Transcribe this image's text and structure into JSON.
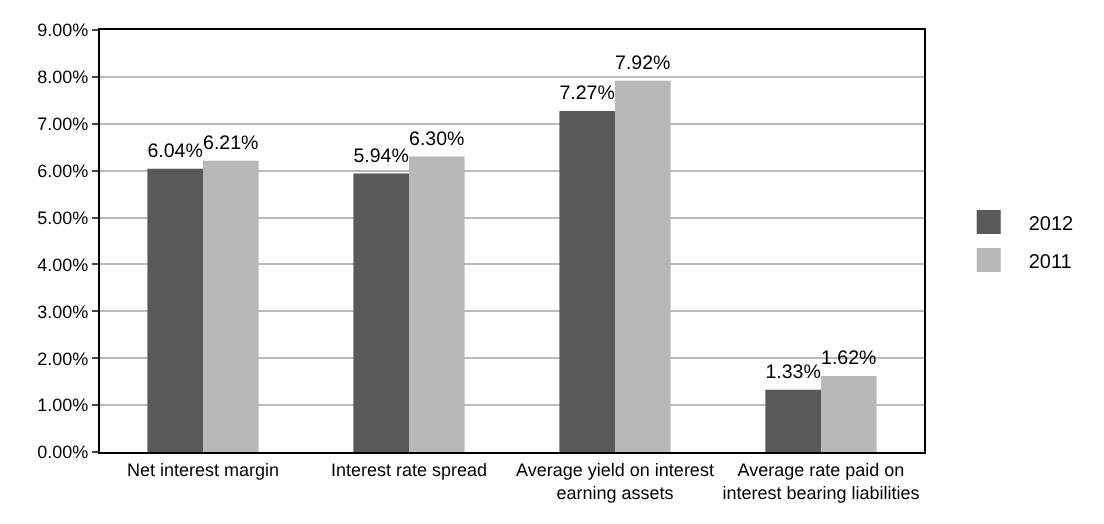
{
  "chart_data": {
    "type": "bar",
    "categories": [
      "Net interest margin",
      "Interest rate spread",
      "Average yield on interest earning assets",
      "Average rate paid on interest bearing liabilities"
    ],
    "series": [
      {
        "name": "2012",
        "color": "#595959",
        "values": [
          6.04,
          5.94,
          7.27,
          1.33
        ],
        "value_labels": [
          "6.04%",
          "5.94%",
          "7.27%",
          "1.33%"
        ]
      },
      {
        "name": "2011",
        "color": "#b8b8b8",
        "values": [
          6.21,
          6.3,
          7.92,
          1.62
        ],
        "value_labels": [
          "6.21%",
          "6.30%",
          "7.92%",
          "1.62%"
        ]
      }
    ],
    "ylim": [
      0,
      9
    ],
    "yticks": [
      {
        "value": 0,
        "label": "0.00%"
      },
      {
        "value": 1,
        "label": "1.00%"
      },
      {
        "value": 2,
        "label": "2.00%"
      },
      {
        "value": 3,
        "label": "3.00%"
      },
      {
        "value": 4,
        "label": "4.00%"
      },
      {
        "value": 5,
        "label": "5.00%"
      },
      {
        "value": 6,
        "label": "6.00%"
      },
      {
        "value": 7,
        "label": "7.00%"
      },
      {
        "value": 8,
        "label": "8.00%"
      },
      {
        "value": 9,
        "label": "9.00%"
      }
    ],
    "grid": "y",
    "legend": "right"
  }
}
